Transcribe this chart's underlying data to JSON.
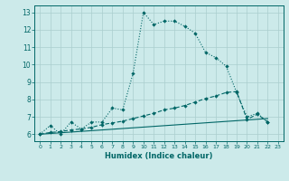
{
  "xlabel": "Humidex (Indice chaleur)",
  "bg_color": "#cceaea",
  "grid_color": "#aacece",
  "line_color": "#006666",
  "xlim": [
    -0.5,
    23.5
  ],
  "ylim": [
    5.6,
    13.4
  ],
  "xticks": [
    0,
    1,
    2,
    3,
    4,
    5,
    6,
    7,
    8,
    9,
    10,
    11,
    12,
    13,
    14,
    15,
    16,
    17,
    18,
    19,
    20,
    21,
    22,
    23
  ],
  "yticks": [
    6,
    7,
    8,
    9,
    10,
    11,
    12,
    13
  ],
  "series1_x": [
    0,
    1,
    2,
    3,
    4,
    5,
    6,
    7,
    8,
    9,
    10,
    11,
    12,
    13,
    14,
    15,
    16,
    17,
    18,
    19,
    20,
    21,
    22
  ],
  "series1_y": [
    6.0,
    6.5,
    6.0,
    6.7,
    6.3,
    6.7,
    6.7,
    7.5,
    7.4,
    9.5,
    13.0,
    12.3,
    12.5,
    12.5,
    12.2,
    11.8,
    10.7,
    10.4,
    9.9,
    8.4,
    7.0,
    7.2,
    6.7
  ],
  "series2_x": [
    0,
    1,
    2,
    3,
    4,
    5,
    6,
    7,
    8,
    9,
    10,
    11,
    12,
    13,
    14,
    15,
    16,
    17,
    18,
    19,
    20,
    21,
    22
  ],
  "series2_y": [
    6.0,
    6.1,
    6.15,
    6.25,
    6.3,
    6.4,
    6.55,
    6.65,
    6.75,
    6.9,
    7.05,
    7.2,
    7.4,
    7.5,
    7.65,
    7.85,
    8.05,
    8.2,
    8.4,
    8.45,
    6.85,
    7.15,
    6.7
  ],
  "series3_x": [
    0,
    22
  ],
  "series3_y": [
    6.0,
    6.9
  ]
}
